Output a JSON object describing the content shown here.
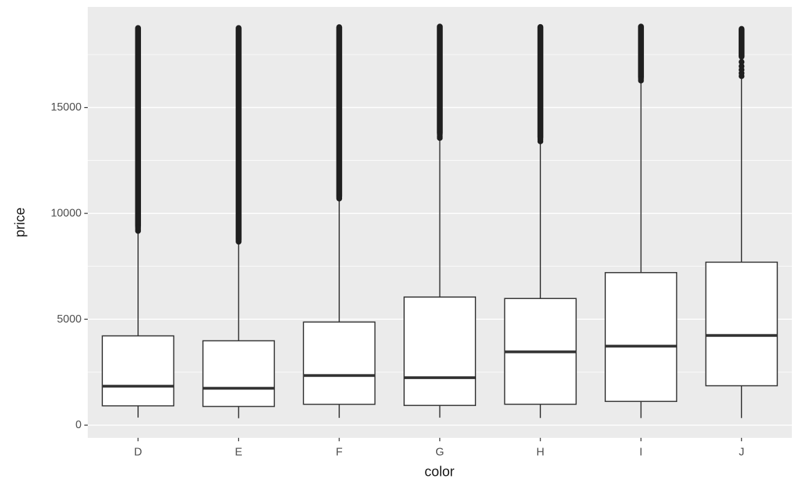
{
  "chart_data": {
    "type": "boxplot",
    "title": "",
    "xlabel": "color",
    "ylabel": "price",
    "categories": [
      "D",
      "E",
      "F",
      "G",
      "H",
      "I",
      "J"
    ],
    "ylim": [
      -600,
      19750
    ],
    "yticks": [
      0,
      5000,
      10000,
      15000
    ],
    "yticks_minor": [
      2500,
      7500,
      12500,
      17500
    ],
    "grid": "on",
    "legend": "none",
    "boxes": [
      {
        "category": "D",
        "whisker_low": 357,
        "q1": 911,
        "median": 1838,
        "q3": 4214,
        "whisker_high": 9168,
        "outlier_segments": [
          [
            9400,
            18750
          ]
        ],
        "outlier_dots": [
          9170,
          9250,
          9330
        ]
      },
      {
        "category": "E",
        "whisker_low": 326,
        "q1": 882,
        "median": 1739,
        "q3": 3983,
        "whisker_high": 8632,
        "outlier_segments": [
          [
            8750,
            18750
          ]
        ],
        "outlier_dots": [
          8660,
          8700
        ]
      },
      {
        "category": "F",
        "whisker_low": 342,
        "q1": 982,
        "median": 2344,
        "q3": 4868,
        "whisker_high": 10691,
        "outlier_segments": [
          [
            10800,
            18790
          ]
        ],
        "outlier_dots": [
          10700,
          10750
        ]
      },
      {
        "category": "G",
        "whisker_low": 354,
        "q1": 931,
        "median": 2242,
        "q3": 6048,
        "whisker_high": 13715,
        "outlier_segments": [
          [
            13780,
            18820
          ]
        ],
        "outlier_dots": [
          13560,
          13640,
          13720
        ]
      },
      {
        "category": "H",
        "whisker_low": 337,
        "q1": 984,
        "median": 3460,
        "q3": 5980,
        "whisker_high": 13468,
        "outlier_segments": [
          [
            13600,
            18800
          ]
        ],
        "outlier_dots": [
          13400,
          13480,
          13550
        ]
      },
      {
        "category": "I",
        "whisker_low": 334,
        "q1": 1120,
        "median": 3730,
        "q3": 7202,
        "whisker_high": 16322,
        "outlier_segments": [
          [
            16420,
            18820
          ]
        ],
        "outlier_dots": [
          16270,
          16350
        ]
      },
      {
        "category": "J",
        "whisker_low": 335,
        "q1": 1860,
        "median": 4234,
        "q3": 7695,
        "whisker_high": 16435,
        "outlier_segments": [
          [
            17400,
            18710
          ]
        ],
        "outlier_dots": [
          16480,
          16620,
          16780,
          16950,
          17150
        ]
      }
    ],
    "colors": {
      "figure_bg": "#FFFFFF",
      "panel_bg": "#EBEBEB",
      "grid": "#FFFFFF",
      "box_fill": "#FFFFFF",
      "box_stroke": "#333333",
      "outlier": "#1F1F1F",
      "tick_mark": "#333333",
      "axis_text": "#4D4D4D",
      "axis_title": "#1A1A1A"
    }
  }
}
